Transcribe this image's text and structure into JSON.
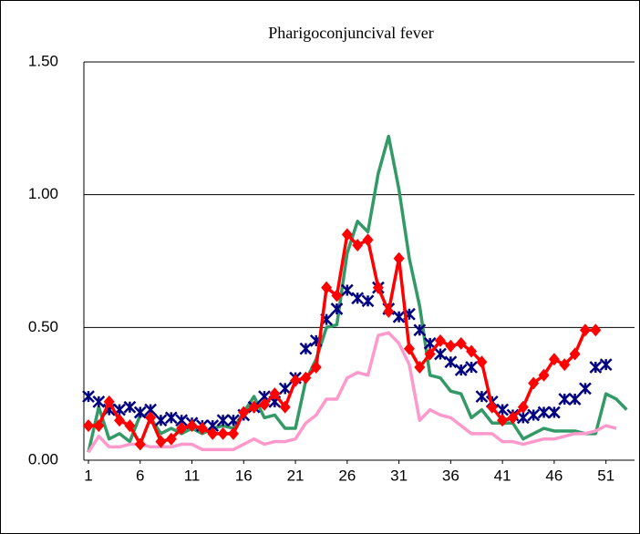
{
  "chart_data": {
    "type": "line",
    "title": "Pharigoconjuncival fever",
    "x": [
      1,
      2,
      3,
      4,
      5,
      6,
      7,
      8,
      9,
      10,
      11,
      12,
      13,
      14,
      15,
      16,
      17,
      18,
      19,
      20,
      21,
      22,
      23,
      24,
      25,
      26,
      27,
      28,
      29,
      30,
      31,
      32,
      33,
      34,
      35,
      36,
      37,
      38,
      39,
      40,
      41,
      42,
      43,
      44,
      45,
      46,
      47,
      48,
      49,
      50,
      51,
      52,
      53
    ],
    "xlim": [
      0.56,
      53.76
    ],
    "xticks": [
      1,
      6,
      11,
      16,
      21,
      26,
      31,
      36,
      41,
      46,
      51
    ],
    "ylim": [
      0,
      1.5
    ],
    "yticks": [
      {
        "value": 0,
        "label": "0.00"
      },
      {
        "value": 0.5,
        "label": "0.50"
      },
      {
        "value": 1,
        "label": "1.00"
      },
      {
        "value": 1.5,
        "label": "1.50"
      }
    ],
    "grid": true,
    "series": [
      {
        "color": "#339966",
        "marker": "none",
        "line": true,
        "values": [
          0.03,
          0.2,
          0.08,
          0.1,
          0.07,
          0.17,
          0.16,
          0.1,
          0.12,
          0.1,
          0.12,
          0.1,
          0.12,
          0.13,
          0.12,
          0.18,
          0.24,
          0.16,
          0.17,
          0.12,
          0.12,
          0.3,
          0.38,
          0.5,
          0.51,
          0.78,
          0.9,
          0.86,
          1.08,
          1.22,
          1.02,
          0.76,
          0.58,
          0.32,
          0.31,
          0.26,
          0.25,
          0.16,
          0.19,
          0.14,
          0.14,
          0.14,
          0.08,
          0.1,
          0.12,
          0.11,
          0.11,
          0.11,
          0.1,
          0.1,
          0.25,
          0.23,
          0.19
        ]
      },
      {
        "color": "#ff99cc",
        "marker": "none",
        "line": true,
        "values": [
          0.03,
          0.09,
          0.05,
          0.05,
          0.06,
          0.06,
          0.05,
          0.05,
          0.05,
          0.06,
          0.06,
          0.04,
          0.04,
          0.04,
          0.04,
          0.06,
          0.08,
          0.06,
          0.07,
          0.07,
          0.08,
          0.14,
          0.17,
          0.23,
          0.23,
          0.31,
          0.33,
          0.32,
          0.47,
          0.48,
          0.44,
          0.36,
          0.15,
          0.19,
          0.17,
          0.16,
          0.13,
          0.1,
          0.1,
          0.1,
          0.07,
          0.07,
          0.06,
          0.07,
          0.08,
          0.08,
          0.09,
          0.1,
          0.1,
          0.11,
          0.13,
          0.12,
          null
        ]
      },
      {
        "color": "#000080",
        "marker": "star",
        "line": false,
        "values": [
          0.24,
          0.22,
          0.19,
          0.19,
          0.2,
          0.18,
          0.19,
          0.15,
          0.16,
          0.15,
          0.14,
          0.13,
          0.13,
          0.15,
          0.15,
          0.17,
          0.2,
          0.24,
          0.22,
          0.27,
          0.31,
          0.42,
          0.45,
          0.53,
          0.57,
          0.64,
          0.61,
          0.6,
          0.65,
          0.57,
          0.54,
          0.55,
          0.49,
          0.44,
          0.4,
          0.37,
          0.34,
          0.35,
          0.24,
          0.22,
          0.19,
          0.17,
          0.16,
          0.17,
          0.18,
          0.18,
          0.23,
          0.23,
          0.27,
          0.35,
          0.36,
          null,
          null
        ]
      },
      {
        "color": "#ff0000",
        "marker": "diamond",
        "line": true,
        "values": [
          0.13,
          0.13,
          0.22,
          0.15,
          0.13,
          0.06,
          0.16,
          0.07,
          0.08,
          0.12,
          0.13,
          0.12,
          0.1,
          0.1,
          0.1,
          0.18,
          0.2,
          0.21,
          0.25,
          0.2,
          0.3,
          0.31,
          0.35,
          0.65,
          0.62,
          0.85,
          0.81,
          0.83,
          0.65,
          0.56,
          0.76,
          0.42,
          0.35,
          0.4,
          0.45,
          0.43,
          0.44,
          0.41,
          0.37,
          0.2,
          0.15,
          0.16,
          0.2,
          0.29,
          0.32,
          0.38,
          0.36,
          0.4,
          0.49,
          0.49,
          null,
          null,
          null
        ]
      }
    ]
  }
}
